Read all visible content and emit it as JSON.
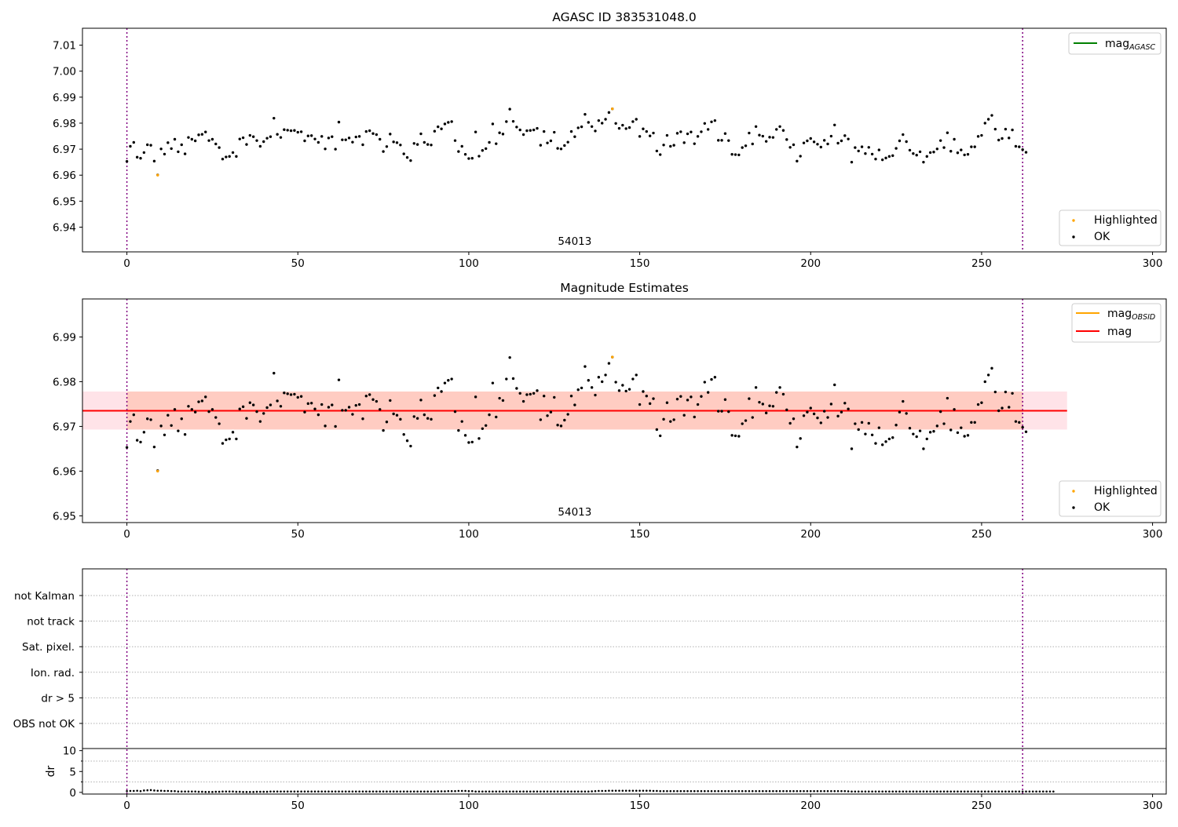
{
  "chart_data": [
    {
      "type": "scatter",
      "title": "AGASC ID 383531048.0",
      "xlabel": "",
      "ylabel": "",
      "xlim": [
        -13,
        304
      ],
      "ylim": [
        6.9305,
        7.0165
      ],
      "xticks": [
        0,
        50,
        100,
        150,
        200,
        250,
        300
      ],
      "yticks": [
        6.94,
        6.95,
        6.96,
        6.97,
        6.98,
        6.99,
        7.0,
        7.01
      ],
      "ytick_decimals": 2,
      "vlines": [
        0,
        262
      ],
      "vline_color": "#800080",
      "annotation": {
        "text": "54013",
        "x": 131
      },
      "legend_upper": [
        {
          "label": "mag",
          "sub": "AGASC",
          "color": "#008000"
        }
      ],
      "legend_lower": [
        {
          "label": "Highlighted",
          "color": "#FFA500"
        },
        {
          "label": "OK",
          "color": "#000000"
        }
      ],
      "highlighted_points": [
        [
          9,
          6.96
        ],
        [
          142,
          6.9855
        ]
      ]
    },
    {
      "type": "scatter",
      "title": "Magnitude Estimates",
      "xlabel": "",
      "ylabel": "",
      "xlim": [
        -13,
        304
      ],
      "ylim": [
        6.9485,
        6.9985
      ],
      "xticks": [
        0,
        50,
        100,
        150,
        200,
        250,
        300
      ],
      "yticks": [
        6.95,
        6.96,
        6.97,
        6.98,
        6.99
      ],
      "ytick_decimals": 2,
      "vlines": [
        0,
        262
      ],
      "vline_color": "#800080",
      "annotation": {
        "text": "54013",
        "x": 131
      },
      "mean_line": {
        "value": 6.9735,
        "x": [
          -13,
          275
        ],
        "color": "#FF0000"
      },
      "bands": [
        {
          "y": [
            6.9693,
            6.9778
          ],
          "x": [
            -13,
            275
          ],
          "color": "#FFC0CB",
          "opacity": 0.45
        },
        {
          "y": [
            6.9693,
            6.9778
          ],
          "x": [
            0,
            262
          ],
          "color": "#FFA07A",
          "opacity": 0.35
        }
      ],
      "legend_upper": [
        {
          "label": "mag",
          "sub": "OBSID",
          "color": "#FFA500"
        },
        {
          "label": "mag",
          "sub": "",
          "color": "#FF0000"
        }
      ],
      "legend_lower": [
        {
          "label": "Highlighted",
          "color": "#FFA500"
        },
        {
          "label": "OK",
          "color": "#000000"
        }
      ],
      "highlighted_points": [
        [
          9,
          6.96
        ],
        [
          142,
          6.9855
        ]
      ]
    },
    {
      "type": "scatter",
      "title": "",
      "xlim": [
        -13,
        304
      ],
      "xticks": [
        0,
        50,
        100,
        150,
        200,
        250,
        300
      ],
      "vlines": [
        0,
        262
      ],
      "vline_color": "#800080",
      "flag_labels": [
        "not Kalman",
        "not track",
        "Sat. pixel.",
        "Ion. rad.",
        "dr > 5",
        "OBS not OK"
      ],
      "dr": {
        "ylabel": "dr",
        "ylim": [
          -0.4,
          10.5
        ],
        "yticks": [
          0,
          5,
          10
        ],
        "values": [
          0.3,
          0.35,
          0.35,
          0.4,
          0.3,
          0.45,
          0.5,
          0.55,
          0.45,
          0.4,
          0.4,
          0.35,
          0.35,
          0.3,
          0.3,
          0.2,
          0.2,
          0.2,
          0.2,
          0.2,
          0.2,
          0.15,
          0.15,
          0.1,
          0.1,
          0.1,
          0.15,
          0.15,
          0.2,
          0.2,
          0.2,
          0.2,
          0.15,
          0.15,
          0.1,
          0.1,
          0.1,
          0.1,
          0.15,
          0.15,
          0.15,
          0.15,
          0.2,
          0.2,
          0.2,
          0.2,
          0.2,
          0.2,
          0.2,
          0.2,
          0.2,
          0.2,
          0.2,
          0.2,
          0.2,
          0.2,
          0.2,
          0.2,
          0.2,
          0.2,
          0.2,
          0.2,
          0.2,
          0.2,
          0.2,
          0.2,
          0.2,
          0.2,
          0.2,
          0.2,
          0.2,
          0.2,
          0.2,
          0.2,
          0.2,
          0.2,
          0.2,
          0.2,
          0.2,
          0.2,
          0.2,
          0.2,
          0.2,
          0.2,
          0.2,
          0.2,
          0.2,
          0.2,
          0.2,
          0.2,
          0.2,
          0.25,
          0.25,
          0.25,
          0.3,
          0.3,
          0.3,
          0.35,
          0.35,
          0.35,
          0.3,
          0.3,
          0.2,
          0.2,
          0.2,
          0.2,
          0.2,
          0.2,
          0.2,
          0.2,
          0.2,
          0.2,
          0.2,
          0.2,
          0.2,
          0.2,
          0.2,
          0.2,
          0.2,
          0.2,
          0.2,
          0.2,
          0.2,
          0.2,
          0.2,
          0.2,
          0.2,
          0.2,
          0.2,
          0.2,
          0.2,
          0.2,
          0.2,
          0.2,
          0.2,
          0.2,
          0.25,
          0.3,
          0.35,
          0.35,
          0.35,
          0.4,
          0.4,
          0.4,
          0.4,
          0.4,
          0.4,
          0.4,
          0.4,
          0.4,
          0.4,
          0.4,
          0.4,
          0.4,
          0.35,
          0.35,
          0.3,
          0.3,
          0.3,
          0.3,
          0.3,
          0.3,
          0.3,
          0.3,
          0.3,
          0.3,
          0.3,
          0.3,
          0.3,
          0.3,
          0.3,
          0.3,
          0.3,
          0.3,
          0.3,
          0.3,
          0.3,
          0.3,
          0.3,
          0.3,
          0.3,
          0.3,
          0.3,
          0.3,
          0.3,
          0.3,
          0.3,
          0.3,
          0.3,
          0.3,
          0.3,
          0.3,
          0.3,
          0.3,
          0.3,
          0.3,
          0.3,
          0.3,
          0.3,
          0.3,
          0.3,
          0.3,
          0.3,
          0.3,
          0.3,
          0.3,
          0.3,
          0.3,
          0.3,
          0.3,
          0.3,
          0.25,
          0.2,
          0.2,
          0.2,
          0.2,
          0.2,
          0.2,
          0.2,
          0.2,
          0.2,
          0.2,
          0.2,
          0.2,
          0.2,
          0.2,
          0.2,
          0.2,
          0.2,
          0.2,
          0.2,
          0.2,
          0.2,
          0.2,
          0.2,
          0.2,
          0.2,
          0.2,
          0.2,
          0.2,
          0.2,
          0.2,
          0.2,
          0.2,
          0.2,
          0.2,
          0.2,
          0.2,
          0.2,
          0.2,
          0.2,
          0.2,
          0.2,
          0.2,
          0.2,
          0.2,
          0.2,
          0.2,
          0.2,
          0.2,
          0.2,
          0.2,
          0.2,
          0.2,
          0.2,
          0.2,
          0.2,
          0.2,
          0.2,
          0.2,
          0.2,
          0.2
        ]
      }
    }
  ],
  "series_ok": {
    "color": "#000000",
    "values": [
      6.9653,
      6.9711,
      6.9726,
      6.9669,
      6.9665,
      6.9687,
      6.9717,
      6.9715,
      6.9654,
      6.9601,
      6.9701,
      6.9681,
      6.9725,
      6.9702,
      6.9738,
      6.969,
      6.9717,
      6.9682,
      6.9745,
      6.9738,
      6.9732,
      6.9755,
      6.9757,
      6.9766,
      6.9733,
      6.9738,
      6.972,
      6.9706,
      6.9662,
      6.967,
      6.9672,
      6.9687,
      6.9672,
      6.9739,
      6.9744,
      6.9718,
      6.9753,
      6.9748,
      6.9733,
      6.9711,
      6.9729,
      6.9742,
      6.9748,
      6.9819,
      6.9757,
      6.9745,
      6.9775,
      6.9773,
      6.9771,
      6.9772,
      6.9765,
      6.9767,
      6.9732,
      6.9751,
      6.9752,
      6.9739,
      6.9726,
      6.9749,
      6.9701,
      6.9743,
      6.9748,
      6.97,
      6.9804,
      6.9736,
      6.9736,
      6.9743,
      6.9727,
      6.9747,
      6.9749,
      6.9717,
      6.9768,
      6.9771,
      6.976,
      6.9756,
      6.9738,
      6.9691,
      6.971,
      6.9758,
      6.9728,
      6.9725,
      6.9716,
      6.9682,
      6.9668,
      6.9656,
      6.9722,
      6.9718,
      6.9759,
      6.9726,
      6.9718,
      6.9716,
      6.9769,
      6.9786,
      6.9778,
      6.9797,
      6.9803,
      6.9806,
      6.9733,
      6.9691,
      6.9711,
      6.968,
      6.9664,
      6.9665,
      6.9766,
      6.9673,
      6.9695,
      6.9702,
      6.9726,
      6.9797,
      6.9721,
      6.9763,
      6.9758,
      6.9806,
      6.9854,
      6.9807,
      6.9785,
      6.9774,
      6.9756,
      6.9771,
      6.9772,
      6.9774,
      6.978,
      6.9715,
      6.9768,
      6.9724,
      6.9732,
      6.9765,
      6.9703,
      6.9701,
      6.9714,
      6.9727,
      6.9768,
      6.9748,
      6.9782,
      6.9786,
      6.9834,
      6.9803,
      6.9787,
      6.977,
      6.981,
      6.98,
      6.9815,
      6.9841,
      6.9855,
      6.9799,
      6.978,
      6.9792,
      6.9779,
      6.9783,
      6.9806,
      6.9815,
      6.9749,
      6.9778,
      6.9768,
      6.9751,
      6.9762,
      6.9693,
      6.9679,
      6.9716,
      6.9753,
      6.9711,
      6.9715,
      6.9761,
      6.9767,
      6.9725,
      6.9759,
      6.9766,
      6.9721,
      6.9749,
      6.9767,
      6.9799,
      6.9776,
      6.9805,
      6.981,
      6.9734,
      6.9734,
      6.976,
      6.9733,
      6.968,
      6.9679,
      6.9678,
      6.9706,
      6.9713,
      6.9762,
      6.972,
      6.9787,
      6.9754,
      6.975,
      6.973,
      6.9746,
      6.9745,
      6.9776,
      6.9787,
      6.9772,
      6.9737,
      6.9707,
      6.9717,
      6.9654,
      6.9673,
      6.9724,
      6.9732,
      6.9741,
      6.9728,
      6.9719,
      6.9708,
      6.9734,
      6.972,
      6.975,
      6.9793,
      6.9723,
      6.9732,
      6.9752,
      6.9739,
      6.965,
      6.9706,
      6.9693,
      6.9709,
      6.9683,
      6.9707,
      6.9681,
      6.9662,
      6.9697,
      6.9659,
      6.9666,
      6.9672,
      6.9675,
      6.9703,
      6.9732,
      6.9756,
      6.9729,
      6.9696,
      6.9683,
      6.9677,
      6.969,
      6.965,
      6.9672,
      6.9687,
      6.9689,
      6.9701,
      6.9733,
      6.9706,
      6.9763,
      6.9692,
      6.9738,
      6.9686,
      6.9697,
      6.9678,
      6.968,
      6.9709,
      6.9709,
      6.9749,
      6.9753,
      6.98,
      6.9815,
      6.983,
      6.9777,
      6.9735,
      6.9741,
      6.9777,
      6.9743,
      6.9774,
      6.9711,
      6.9709,
      6.9698,
      6.9688
    ]
  }
}
